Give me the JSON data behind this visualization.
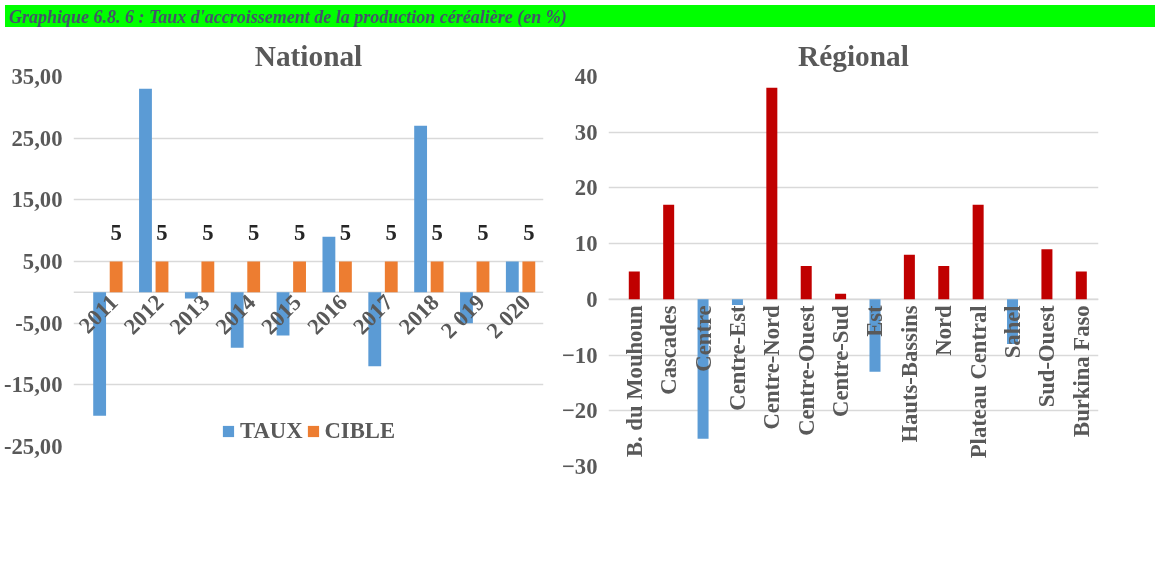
{
  "chart_data": [
    {
      "type": "bar",
      "title": "National",
      "annotations": [
        "Graphique 6.8. 6 : Taux d'accroissement de la production céréalière (en %)"
      ],
      "categories": [
        "2011",
        "2012",
        "2013",
        "2014",
        "2015",
        "2016",
        "2017",
        "2018",
        "2 019",
        "2 020"
      ],
      "series": [
        {
          "name": "TAUX",
          "color": "#5b9bd5",
          "values": [
            -20,
            33,
            -1,
            -9,
            -7,
            9,
            -12,
            27,
            -5,
            5
          ]
        },
        {
          "name": "CIBLE",
          "color": "#ed7d31",
          "values": [
            5,
            5,
            5,
            5,
            5,
            5,
            5,
            5,
            5,
            5
          ],
          "value_labels": [
            "5",
            "5",
            "5",
            "5",
            "5",
            "5",
            "5",
            "5",
            "5",
            "5"
          ]
        }
      ],
      "ylim": [
        -25,
        35
      ],
      "yticks": [
        {
          "value": -25,
          "label": "-25,00"
        },
        {
          "value": -15,
          "label": "-15,00"
        },
        {
          "value": -5,
          "label": "-5,00"
        },
        {
          "value": 5,
          "label": "5,00"
        },
        {
          "value": 15,
          "label": "15,00"
        },
        {
          "value": 25,
          "label": "25,00"
        },
        {
          "value": 35,
          "label": "35,00"
        }
      ],
      "grid": "y",
      "legend": "bottom"
    },
    {
      "type": "bar",
      "title": "Régional",
      "categories": [
        "B. du Mouhoun",
        "Cascades",
        "Centre",
        "Centre-Est",
        "Centre-Nord",
        "Centre-Ouest",
        "Centre-Sud",
        "Est",
        "Hauts-Bassins",
        "Nord",
        "Plateau Central",
        "Sahel",
        "Sud-Ouest",
        "Burkina Faso"
      ],
      "values": [
        5,
        17,
        -25,
        -1,
        38,
        6,
        1,
        -13,
        8,
        6,
        17,
        -8,
        9,
        5
      ],
      "colors": [
        "#c00000",
        "#c00000",
        "#5b9bd5",
        "#5b9bd5",
        "#c00000",
        "#c00000",
        "#c00000",
        "#5b9bd5",
        "#c00000",
        "#c00000",
        "#c00000",
        "#5b9bd5",
        "#c00000",
        "#c00000"
      ],
      "ylim": [
        -30,
        40
      ],
      "yticks": [
        -30,
        -20,
        -10,
        0,
        10,
        20,
        30,
        40
      ],
      "grid": "y"
    }
  ]
}
